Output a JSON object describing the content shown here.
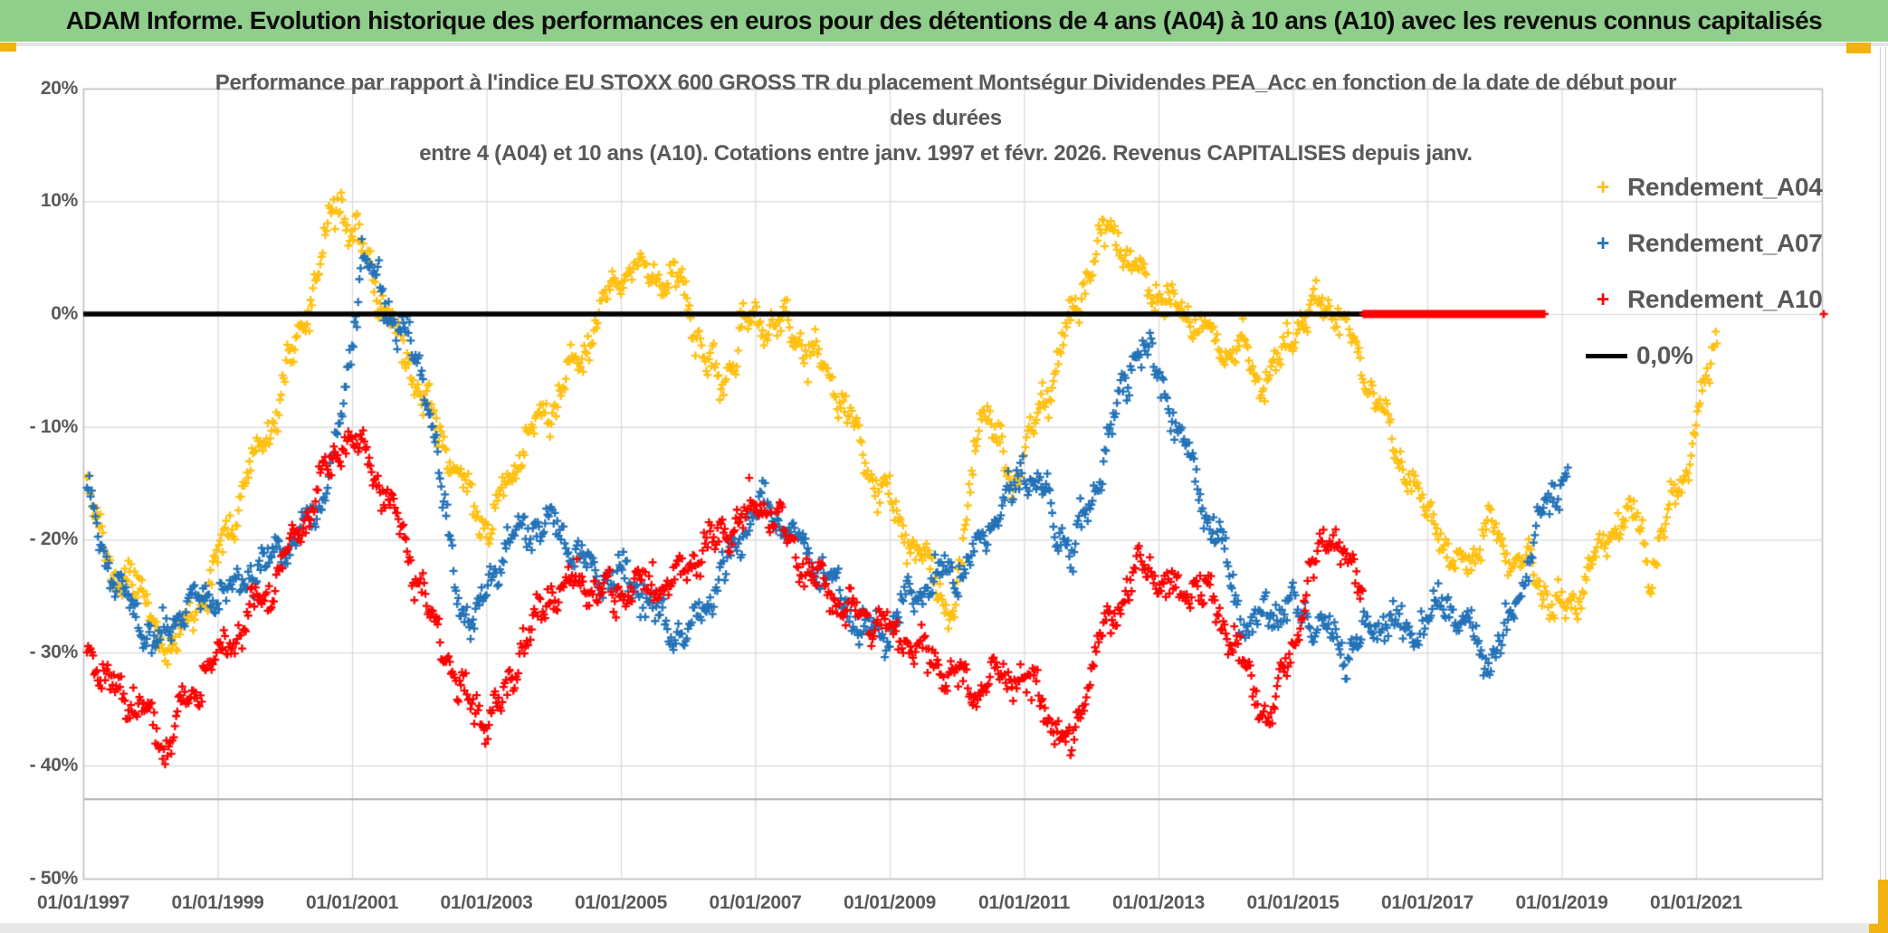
{
  "header": {
    "title": "ADAM Informe. Evolution historique des performances en euros pour des détentions de 4 ans (A04) à 10 ans (A10) avec les revenus connus capitalisés"
  },
  "chart": {
    "title_lines": [
      "Performance par rapport à l'indice EU STOXX 600 GROSS TR  du placement Montségur Dividendes PEA_Acc en fonction de la date de début pour",
      "des durées",
      "entre 4 (A04) et 10 ans (A10). Cotations entre janv. 1997 et févr. 2026. Revenus CAPITALISES depuis janv."
    ],
    "legend": {
      "items": [
        {
          "label": "Rendement_A04",
          "color": "#FFC010",
          "marker": "plus"
        },
        {
          "label": "Rendement_A07",
          "color": "#2372B8",
          "marker": "plus"
        },
        {
          "label": "Rendement_A10",
          "color": "#FF0000",
          "marker": "plus"
        },
        {
          "label": "0,0%",
          "color": "#000000",
          "marker": "line"
        }
      ]
    }
  },
  "colors": {
    "header_green": "#90CE8B",
    "accent_gold": "#F2B211",
    "text_gray": "#595959",
    "gridline": "#D9D9D9",
    "plot_border": "#BFBFBF",
    "dark_inner_line": "#ABABAB",
    "zero_line": "#000000"
  },
  "chart_data": {
    "type": "scatter",
    "title": "Performance par rapport à l'indice EU STOXX 600 GROSS TR du placement Montségur Dividendes PEA_Acc en fonction de la date de début pour des durées entre 4 (A04) et 10 ans (A10). Cotations entre janv. 1997 et févr. 2026. Revenus CAPITALISES depuis janv.",
    "x_axis": {
      "tick_labels": [
        "01/01/1997",
        "01/01/1999",
        "01/01/2001",
        "01/01/2003",
        "01/01/2005",
        "01/01/2007",
        "01/01/2009",
        "01/01/2011",
        "01/01/2013",
        "01/01/2015",
        "01/01/2017",
        "01/01/2019",
        "01/01/2021"
      ],
      "tick_years": [
        1997,
        1999,
        2001,
        2003,
        2005,
        2007,
        2009,
        2011,
        2013,
        2015,
        2017,
        2019,
        2021
      ],
      "range_years": [
        1997.0,
        2022.87
      ],
      "grid": true
    },
    "y_axis": {
      "tick_labels": [
        "20%",
        "10%",
        "0%",
        "- 10%",
        "- 20%",
        "- 30%",
        "- 40%",
        "- 50%"
      ],
      "tick_values": [
        20,
        10,
        0,
        -10,
        -20,
        -30,
        -40,
        -50
      ],
      "unit": "%",
      "range": [
        -50,
        20
      ],
      "grid": true,
      "extra_dark_line_pct": -43
    },
    "legend_position": "right-top",
    "marker_glyph": "+",
    "series": [
      {
        "name": "Rendement_A04",
        "color": "#FFC010",
        "seed": 11,
        "points": [
          [
            1997.0,
            -13
          ],
          [
            1997.2,
            -17
          ],
          [
            1997.45,
            -25
          ],
          [
            1997.7,
            -22
          ],
          [
            1998.0,
            -27
          ],
          [
            1998.3,
            -30
          ],
          [
            1998.6,
            -27
          ],
          [
            1999.0,
            -22
          ],
          [
            1999.4,
            -15
          ],
          [
            1999.8,
            -10
          ],
          [
            2000.1,
            -4
          ],
          [
            2000.4,
            1
          ],
          [
            2000.65,
            8
          ],
          [
            2000.8,
            10.5
          ],
          [
            2001.0,
            7
          ],
          [
            2001.2,
            5
          ],
          [
            2001.5,
            0.5
          ],
          [
            2001.8,
            -4
          ],
          [
            2002.1,
            -8
          ],
          [
            2002.5,
            -13
          ],
          [
            2002.8,
            -17
          ],
          [
            2003.05,
            -19
          ],
          [
            2003.3,
            -15
          ],
          [
            2003.6,
            -11
          ],
          [
            2004.0,
            -8
          ],
          [
            2004.4,
            -4
          ],
          [
            2004.75,
            1
          ],
          [
            2005.1,
            4
          ],
          [
            2005.5,
            3.5
          ],
          [
            2005.9,
            3
          ],
          [
            2006.2,
            -3
          ],
          [
            2006.45,
            -7
          ],
          [
            2006.7,
            -3
          ],
          [
            2007.0,
            -0.5
          ],
          [
            2007.4,
            -1
          ],
          [
            2007.8,
            -3
          ],
          [
            2008.1,
            -5.5
          ],
          [
            2008.45,
            -10
          ],
          [
            2008.8,
            -15
          ],
          [
            2009.1,
            -18
          ],
          [
            2009.4,
            -21
          ],
          [
            2009.7,
            -24
          ],
          [
            2009.95,
            -27
          ],
          [
            2010.15,
            -18
          ],
          [
            2010.35,
            -7.5
          ],
          [
            2010.6,
            -11
          ],
          [
            2010.85,
            -15
          ],
          [
            2011.15,
            -10
          ],
          [
            2011.5,
            -4
          ],
          [
            2011.8,
            1
          ],
          [
            2012.05,
            5.5
          ],
          [
            2012.3,
            8
          ],
          [
            2012.55,
            5
          ],
          [
            2012.8,
            3
          ],
          [
            2013.1,
            1.5
          ],
          [
            2013.4,
            0
          ],
          [
            2013.7,
            -1.5
          ],
          [
            2014.0,
            -3
          ],
          [
            2014.3,
            -3
          ],
          [
            2014.55,
            -6.5
          ],
          [
            2014.8,
            -4
          ],
          [
            2015.1,
            -0.5
          ],
          [
            2015.45,
            1
          ],
          [
            2015.75,
            -0.5
          ],
          [
            2016.05,
            -5
          ],
          [
            2016.35,
            -9
          ],
          [
            2016.65,
            -13.5
          ],
          [
            2016.95,
            -17.5
          ],
          [
            2017.15,
            -18
          ],
          [
            2017.4,
            -23
          ],
          [
            2017.65,
            -21
          ],
          [
            2017.95,
            -19
          ],
          [
            2018.25,
            -21.5
          ],
          [
            2018.55,
            -22.5
          ],
          [
            2018.85,
            -25.5
          ],
          [
            2019.05,
            -26.5
          ],
          [
            2019.3,
            -24
          ],
          [
            2019.6,
            -20.5
          ],
          [
            2019.9,
            -18
          ],
          [
            2020.15,
            -18.5
          ],
          [
            2020.32,
            -23
          ],
          [
            2020.5,
            -20
          ],
          [
            2020.7,
            -16
          ],
          [
            2020.9,
            -12.5
          ],
          [
            2021.1,
            -7
          ],
          [
            2021.32,
            -2
          ]
        ]
      },
      {
        "name": "Rendement_A07",
        "color": "#2372B8",
        "seed": 23,
        "points": [
          [
            1997.0,
            -15
          ],
          [
            1997.25,
            -20
          ],
          [
            1997.5,
            -24
          ],
          [
            1997.8,
            -27
          ],
          [
            1998.1,
            -29.5
          ],
          [
            1998.5,
            -26
          ],
          [
            1998.9,
            -25
          ],
          [
            1999.3,
            -24
          ],
          [
            1999.7,
            -22
          ],
          [
            2000.1,
            -20
          ],
          [
            2000.5,
            -17
          ],
          [
            2000.8,
            -11
          ],
          [
            2001.0,
            -3
          ],
          [
            2001.15,
            5
          ],
          [
            2001.35,
            3
          ],
          [
            2001.6,
            0
          ],
          [
            2001.9,
            -3.5
          ],
          [
            2002.15,
            -8
          ],
          [
            2002.4,
            -18
          ],
          [
            2002.6,
            -26
          ],
          [
            2002.85,
            -27.5
          ],
          [
            2003.1,
            -23
          ],
          [
            2003.4,
            -20
          ],
          [
            2003.7,
            -19
          ],
          [
            2004.0,
            -18.5
          ],
          [
            2004.3,
            -21
          ],
          [
            2004.6,
            -23
          ],
          [
            2004.9,
            -23
          ],
          [
            2005.2,
            -24
          ],
          [
            2005.6,
            -27
          ],
          [
            2005.95,
            -29
          ],
          [
            2006.25,
            -26
          ],
          [
            2006.55,
            -22.5
          ],
          [
            2006.85,
            -19
          ],
          [
            2007.1,
            -16.5
          ],
          [
            2007.4,
            -18.5
          ],
          [
            2007.7,
            -21
          ],
          [
            2008.0,
            -23
          ],
          [
            2008.3,
            -25
          ],
          [
            2008.6,
            -28
          ],
          [
            2008.9,
            -29
          ],
          [
            2009.2,
            -26
          ],
          [
            2009.5,
            -24
          ],
          [
            2009.8,
            -23
          ],
          [
            2010.1,
            -23
          ],
          [
            2010.4,
            -20
          ],
          [
            2010.7,
            -16.5
          ],
          [
            2011.0,
            -14
          ],
          [
            2011.25,
            -15.5
          ],
          [
            2011.5,
            -19
          ],
          [
            2011.75,
            -21
          ],
          [
            2012.0,
            -17
          ],
          [
            2012.2,
            -12
          ],
          [
            2012.45,
            -7
          ],
          [
            2012.7,
            -2.5
          ],
          [
            2012.9,
            -4.5
          ],
          [
            2013.1,
            -7
          ],
          [
            2013.4,
            -12
          ],
          [
            2013.7,
            -17
          ],
          [
            2014.0,
            -22
          ],
          [
            2014.3,
            -28
          ],
          [
            2014.6,
            -27
          ],
          [
            2014.9,
            -26
          ],
          [
            2015.2,
            -26.5
          ],
          [
            2015.5,
            -28
          ],
          [
            2015.8,
            -30
          ],
          [
            2016.1,
            -28
          ],
          [
            2016.4,
            -27
          ],
          [
            2016.7,
            -28.5
          ],
          [
            2017.0,
            -27
          ],
          [
            2017.3,
            -25.5
          ],
          [
            2017.6,
            -28
          ],
          [
            2017.9,
            -30.5
          ],
          [
            2018.2,
            -28
          ],
          [
            2018.5,
            -22
          ],
          [
            2018.75,
            -17.5
          ],
          [
            2018.95,
            -15
          ],
          [
            2019.1,
            -13.5
          ]
        ]
      },
      {
        "name": "Rendement_A10",
        "color": "#FF0000",
        "seed": 37,
        "points": [
          [
            1997.0,
            -28
          ],
          [
            1997.3,
            -32
          ],
          [
            1997.6,
            -34
          ],
          [
            1997.9,
            -35
          ],
          [
            1998.2,
            -38
          ],
          [
            1998.5,
            -35
          ],
          [
            1998.8,
            -32
          ],
          [
            1999.1,
            -29.5
          ],
          [
            1999.5,
            -26.5
          ],
          [
            1999.9,
            -23
          ],
          [
            2000.3,
            -18
          ],
          [
            2000.7,
            -13
          ],
          [
            2000.95,
            -11
          ],
          [
            2001.2,
            -12.5
          ],
          [
            2001.5,
            -16
          ],
          [
            2001.8,
            -20
          ],
          [
            2002.1,
            -26
          ],
          [
            2002.4,
            -30
          ],
          [
            2002.7,
            -34
          ],
          [
            2002.95,
            -36
          ],
          [
            2003.2,
            -35
          ],
          [
            2003.5,
            -30
          ],
          [
            2003.8,
            -26.5
          ],
          [
            2004.1,
            -24
          ],
          [
            2004.5,
            -24
          ],
          [
            2004.9,
            -25
          ],
          [
            2005.3,
            -24
          ],
          [
            2005.7,
            -24
          ],
          [
            2006.0,
            -22
          ],
          [
            2006.4,
            -20
          ],
          [
            2006.8,
            -18
          ],
          [
            2007.1,
            -17
          ],
          [
            2007.4,
            -19
          ],
          [
            2007.7,
            -22
          ],
          [
            2008.0,
            -24
          ],
          [
            2008.35,
            -26
          ],
          [
            2008.7,
            -27
          ],
          [
            2009.0,
            -28
          ],
          [
            2009.35,
            -29.5
          ],
          [
            2009.7,
            -31
          ],
          [
            2010.0,
            -32
          ],
          [
            2010.3,
            -33.5
          ],
          [
            2010.6,
            -32
          ],
          [
            2010.9,
            -32
          ],
          [
            2011.2,
            -33.5
          ],
          [
            2011.45,
            -36
          ],
          [
            2011.66,
            -39
          ],
          [
            2011.9,
            -33.5
          ],
          [
            2012.2,
            -28
          ],
          [
            2012.5,
            -24.5
          ],
          [
            2012.75,
            -22.5
          ],
          [
            2013.0,
            -23.5
          ],
          [
            2013.3,
            -25
          ],
          [
            2013.6,
            -24
          ],
          [
            2013.9,
            -26.5
          ],
          [
            2014.2,
            -30
          ],
          [
            2014.45,
            -34
          ],
          [
            2014.65,
            -36
          ],
          [
            2014.9,
            -31
          ],
          [
            2015.15,
            -26
          ],
          [
            2015.4,
            -20.5
          ],
          [
            2015.6,
            -19
          ],
          [
            2015.8,
            -22
          ],
          [
            2016.04,
            -24.5
          ]
        ]
      }
    ],
    "reference_lines": [
      {
        "name": "0,0%",
        "color": "#000000",
        "value_pct": 0,
        "span_years": [
          1997.0,
          2016.05
        ],
        "thickness": 5.5
      },
      {
        "name": "Rendement_A10_zero_flat",
        "color": "#FF0000",
        "value_pct": 0,
        "span_years": [
          2016.05,
          2018.76
        ],
        "style": "dense-plus"
      }
    ],
    "stray_marker": {
      "name": "red-zero-end",
      "color": "#FF0000",
      "year": 2022.9,
      "value_pct": 0
    }
  }
}
